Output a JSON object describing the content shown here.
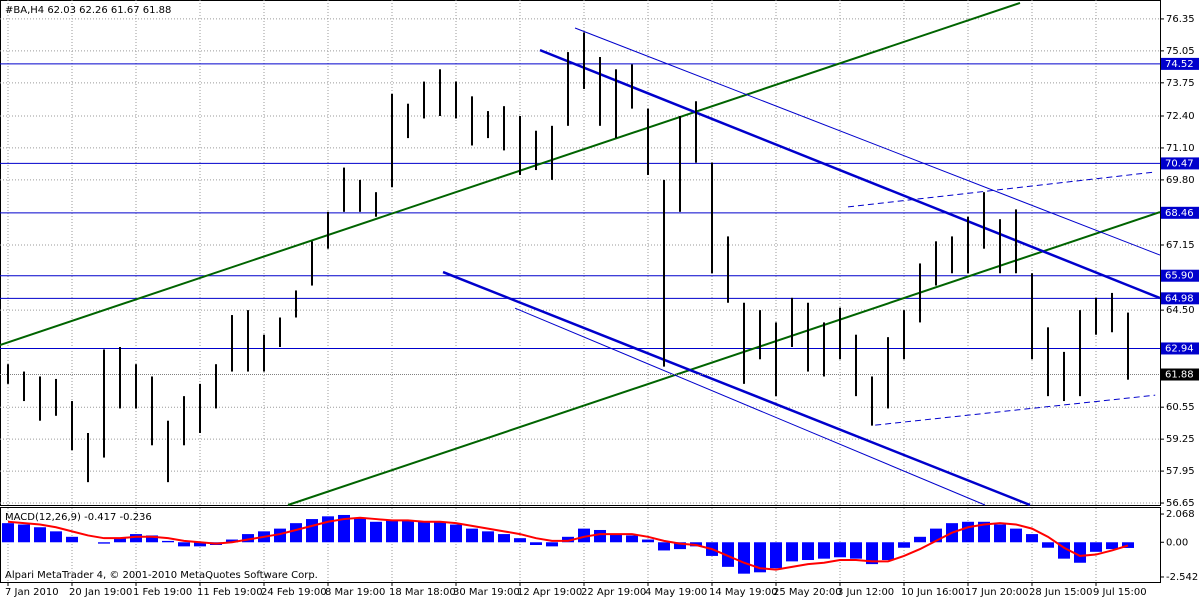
{
  "chart_data": [
    {
      "type": "ohlc",
      "title": "#BA,H4  62.03 62.26 61.67 61.88",
      "categories": [
        "7 Jan 2010",
        null,
        null,
        null,
        "20 Jan 19:00",
        null,
        null,
        null,
        "1 Feb 19:00",
        null,
        null,
        null,
        "11 Feb 19:00",
        null,
        null,
        null,
        "24 Feb 19:00",
        null,
        null,
        null,
        "8 Mar 19:00",
        null,
        null,
        null,
        "18 Mar 18:00",
        null,
        null,
        null,
        "30 Mar 19:00",
        null,
        null,
        null,
        "12 Apr 19:00",
        null,
        null,
        null,
        "22 Apr 19:00",
        null,
        null,
        null,
        "4 May 19:00",
        null,
        null,
        null,
        "14 May 19:00",
        null,
        null,
        null,
        "25 May 20:00",
        null,
        null,
        null,
        "3 Jun 12:00",
        null,
        null,
        null,
        "10 Jun 16:00",
        null,
        null,
        null,
        "17 Jun 20:00",
        null,
        null,
        null,
        "28 Jun 15:00",
        null,
        null,
        null,
        "9 Jul 15:00",
        null,
        null
      ],
      "high": [
        62.3,
        62,
        61.8,
        61.7,
        60.8,
        59.5,
        62.9,
        63,
        62.3,
        61.8,
        60,
        61,
        61.5,
        62.3,
        64.3,
        64.5,
        63.5,
        64.2,
        65.3,
        67.3,
        68.5,
        70.3,
        69.8,
        69.3,
        73.3,
        72.9,
        73.8,
        74.3,
        73.8,
        73.2,
        72.6,
        72.8,
        72.4,
        71.8,
        72,
        75,
        75.8,
        74.8,
        74.3,
        74.5,
        72.7,
        69.8,
        72.4,
        73,
        70.5,
        67.5,
        64.8,
        64.5,
        64,
        65,
        64.8,
        64,
        64.6,
        63.5,
        61.8,
        63.4,
        64.5,
        66.4,
        67.3,
        67.5,
        68.3,
        69.3,
        68.2,
        68.6,
        66,
        63.8,
        62.8,
        64.5,
        65,
        65.2,
        64.4
      ],
      "low": [
        61.5,
        60.8,
        60,
        60.2,
        58.8,
        57.5,
        58.5,
        60.5,
        60.5,
        59,
        57.5,
        59,
        59.5,
        60.5,
        62,
        62,
        62,
        63,
        64.2,
        65.5,
        67,
        68.5,
        68.5,
        68.3,
        69.5,
        71.5,
        72.3,
        72.4,
        72.3,
        71.2,
        71.5,
        71,
        70,
        70.2,
        69.8,
        72,
        73.5,
        72,
        71.5,
        72.7,
        70,
        62.2,
        68.5,
        70.5,
        66,
        64.8,
        61.5,
        62.5,
        61,
        63,
        62,
        61.8,
        62.5,
        61,
        59.8,
        60.5,
        62.5,
        64,
        65.5,
        66,
        66,
        67,
        66,
        66,
        62.5,
        61,
        60.8,
        61,
        63.5,
        63.6,
        61.67
      ],
      "color": "#000000",
      "ylim": [
        56.57,
        77.12
      ],
      "yticks": [
        76.35,
        75.05,
        73.75,
        {
          "value": 72.4,
          "label": "72.40"
        },
        {
          "value": 71.1,
          "label": "71.10"
        },
        {
          "value": 69.8,
          "label": "69.80"
        },
        67.15,
        {
          "value": 64.5,
          "label": "64.50"
        },
        60.55,
        59.25,
        57.95,
        56.65
      ],
      "levels": [
        74.52,
        70.47,
        68.46,
        {
          "value": 65.9,
          "label": "65.90"
        },
        64.98,
        62.94
      ],
      "level_color": "#0000cc",
      "last_price": 61.88,
      "trendlines": [
        {
          "color": "#006400",
          "width": 2,
          "from": [
            -0.5,
            63.08
          ],
          "to": [
            63.25,
            77.0
          ]
        },
        {
          "color": "#006400",
          "width": 2,
          "from": [
            17.5,
            56.57
          ],
          "to": [
            72,
            68.49
          ]
        },
        {
          "color": "#0000cc",
          "width": 2.5,
          "from": [
            33.25,
            75.08
          ],
          "to": [
            72,
            64.99
          ]
        },
        {
          "color": "#0000cc",
          "width": 1,
          "from": [
            35.44,
            75.98
          ],
          "to": [
            72,
            66.74
          ]
        },
        {
          "color": "#0000cc",
          "width": 2.5,
          "from": [
            27.19,
            66.05
          ],
          "to": [
            63.875,
            56.57
          ]
        },
        {
          "color": "#0000cc",
          "width": 1,
          "from": [
            31.69,
            64.58
          ],
          "to": [
            61.06,
            56.57
          ]
        },
        {
          "color": "#0000cc",
          "width": 1,
          "dashed": true,
          "from": [
            52.5,
            68.7
          ],
          "to": [
            71.7,
            70.12
          ]
        },
        {
          "color": "#0000cc",
          "width": 1,
          "dashed": true,
          "from": [
            54.2,
            59.82
          ],
          "to": [
            71.7,
            61.04
          ]
        }
      ],
      "grid": true
    },
    {
      "type": "macd",
      "title": "MACD(12,26,9) -0.417 -0.236",
      "series": [
        {
          "color": "#0000ff",
          "values": [
            1.4,
            1.3,
            1.1,
            0.8,
            0.4,
            0,
            -0.1,
            0.3,
            0.6,
            0.5,
            0.1,
            -0.3,
            -0.3,
            -0.2,
            0.2,
            0.6,
            0.8,
            1,
            1.4,
            1.7,
            1.9,
            2,
            1.8,
            1.5,
            1.6,
            1.6,
            1.5,
            1.5,
            1.3,
            1,
            0.8,
            0.6,
            0.3,
            -0.2,
            -0.3,
            0.4,
            1,
            0.9,
            0.6,
            0.5,
            0.2,
            -0.6,
            -0.5,
            -0.3,
            -1,
            -1.8,
            -2.3,
            -2.2,
            -1.9,
            -1.4,
            -1.3,
            -1.2,
            -1.1,
            -1.2,
            -1.6,
            -1.3,
            -0.4,
            0.4,
            1,
            1.4,
            1.5,
            1.5,
            1.3,
            1,
            0.6,
            -0.4,
            -1.2,
            -1.5,
            -0.7,
            -0.5,
            -0.417
          ]
        },
        {
          "color": "#ff0000",
          "values": [
            1.5,
            1.4,
            1.3,
            1.1,
            0.8,
            0.5,
            0.3,
            0.3,
            0.4,
            0.4,
            0.3,
            0.1,
            0,
            -0.1,
            0,
            0.2,
            0.4,
            0.6,
            0.9,
            1.2,
            1.5,
            1.7,
            1.8,
            1.7,
            1.6,
            1.6,
            1.5,
            1.5,
            1.4,
            1.2,
            1,
            0.8,
            0.6,
            0.3,
            0.1,
            0.1,
            0.4,
            0.6,
            0.6,
            0.6,
            0.4,
            0.1,
            -0.1,
            -0.2,
            -0.5,
            -1,
            -1.5,
            -1.9,
            -2,
            -1.8,
            -1.6,
            -1.5,
            -1.3,
            -1.3,
            -1.4,
            -1.4,
            -1,
            -0.5,
            0.1,
            0.7,
            1.1,
            1.3,
            1.4,
            1.3,
            1,
            0.4,
            -0.4,
            -1,
            -0.9,
            -0.6,
            -0.236
          ]
        }
      ],
      "ylim": [
        -2.91,
        2.51
      ],
      "yticks": [
        2.068,
        {
          "value": 0,
          "label": "0.00"
        },
        -2.542
      ]
    },
    {
      "type": "note",
      "text": "Alpari MetaTrader 4, © 2001-2010 MetaQuotes Software Corp."
    }
  ]
}
